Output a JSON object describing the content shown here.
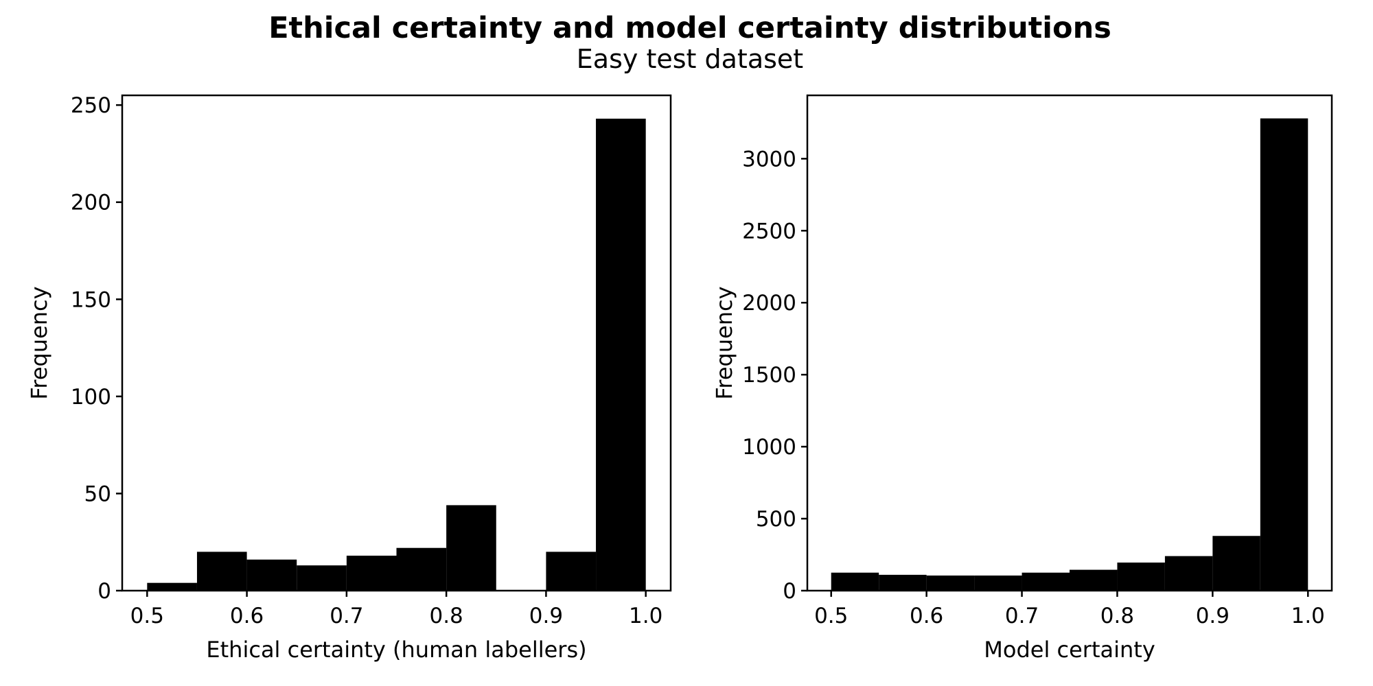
{
  "figure": {
    "title": "Ethical certainty and model certainty distributions",
    "subtitle": "Easy test dataset"
  },
  "chart_data": [
    {
      "type": "bar",
      "subtype": "histogram",
      "bar_color": "#000000",
      "bin_edges": [
        0.5,
        0.55,
        0.6,
        0.65,
        0.7,
        0.75,
        0.8,
        0.85,
        0.9,
        0.95,
        1.0
      ],
      "values": [
        4,
        20,
        16,
        13,
        18,
        22,
        44,
        0,
        20,
        243
      ],
      "xlabel": "Ethical certainty (human labellers)",
      "ylabel": "Frequency",
      "xlim": [
        0.475,
        1.025
      ],
      "ylim": [
        0,
        255
      ],
      "x_ticks": [
        0.5,
        0.6,
        0.7,
        0.8,
        0.9,
        1.0
      ],
      "x_tick_labels": [
        "0.5",
        "0.6",
        "0.7",
        "0.8",
        "0.9",
        "1.0"
      ],
      "y_ticks": [
        0,
        50,
        100,
        150,
        200,
        250
      ],
      "y_tick_labels": [
        "0",
        "50",
        "100",
        "150",
        "200",
        "250"
      ],
      "grid": false,
      "legend": "none"
    },
    {
      "type": "bar",
      "subtype": "histogram",
      "bar_color": "#000000",
      "bin_edges": [
        0.5,
        0.55,
        0.6,
        0.65,
        0.7,
        0.75,
        0.8,
        0.85,
        0.9,
        0.95,
        1.0
      ],
      "values": [
        125,
        110,
        105,
        105,
        125,
        145,
        195,
        240,
        380,
        3280
      ],
      "xlabel": "Model certainty",
      "ylabel": "Frequency",
      "xlim": [
        0.475,
        1.025
      ],
      "ylim": [
        0,
        3440
      ],
      "x_ticks": [
        0.5,
        0.6,
        0.7,
        0.8,
        0.9,
        1.0
      ],
      "x_tick_labels": [
        "0.5",
        "0.6",
        "0.7",
        "0.8",
        "0.9",
        "1.0"
      ],
      "y_ticks": [
        0,
        500,
        1000,
        1500,
        2000,
        2500,
        3000
      ],
      "y_tick_labels": [
        "0",
        "500",
        "1000",
        "1500",
        "2000",
        "2500",
        "3000"
      ],
      "grid": false,
      "legend": "none"
    }
  ]
}
